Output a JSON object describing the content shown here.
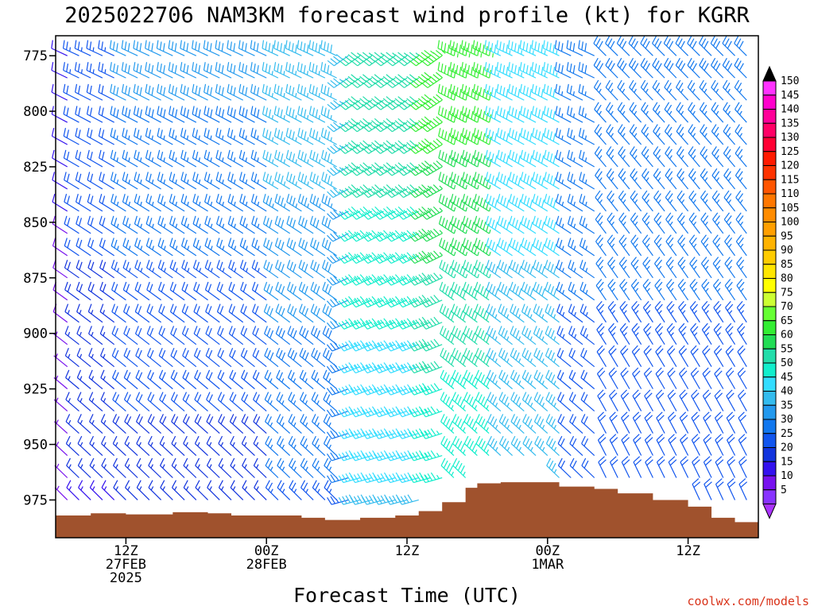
{
  "chart_data": {
    "type": "wind-barb-time-height",
    "title": "2025022706 NAM3KM forecast wind profile (kt) for KGRR",
    "xlabel": "Forecast Time (UTC)",
    "ylabel": "",
    "y_ticks": [
      "775",
      "800",
      "825",
      "850",
      "875",
      "900",
      "925",
      "950",
      "975"
    ],
    "y_tick_values": [
      775,
      800,
      825,
      850,
      875,
      900,
      925,
      950,
      975
    ],
    "ylim": [
      766,
      992
    ],
    "x_ticks": [
      {
        "hour": 6,
        "lines": [
          "12Z",
          "27FEB",
          "2025"
        ]
      },
      {
        "hour": 18,
        "lines": [
          "00Z",
          "28FEB"
        ]
      },
      {
        "hour": 30,
        "lines": [
          "12Z"
        ]
      },
      {
        "hour": 42,
        "lines": [
          "00Z",
          "1MAR"
        ]
      },
      {
        "hour": 54,
        "lines": [
          "12Z"
        ]
      }
    ],
    "xlim": [
      0,
      60
    ],
    "levels_hpa": [
      775,
      785,
      795,
      805,
      815,
      825,
      835,
      845,
      855,
      865,
      875,
      885,
      895,
      905,
      915,
      925,
      935,
      945,
      955,
      965,
      975
    ],
    "times_hr": [
      1,
      2,
      3,
      4,
      5,
      6,
      7,
      8,
      9,
      10,
      11,
      12,
      13,
      14,
      15,
      16,
      17,
      18,
      19,
      20,
      21,
      22,
      23,
      24,
      25,
      26,
      27,
      28,
      29,
      30,
      31,
      32,
      33,
      34,
      35,
      36,
      37,
      38,
      39,
      40,
      41,
      42,
      43,
      44,
      45,
      46,
      47,
      48,
      49,
      50,
      51,
      52,
      53,
      54,
      55,
      56,
      57,
      58,
      59
    ],
    "wind_speed_phases_kt": [
      {
        "until_hr": 1,
        "low_level": 8,
        "upper_level": 12
      },
      {
        "until_hr": 5,
        "low_level": 15,
        "upper_level": 25
      },
      {
        "until_hr": 18,
        "low_level": 18,
        "upper_level": 32
      },
      {
        "until_hr": 25,
        "low_level": 25,
        "upper_level": 40
      },
      {
        "until_hr": 31,
        "low_level": 40,
        "upper_level": 55
      },
      {
        "until_hr": 37,
        "low_level": 45,
        "upper_level": 65
      },
      {
        "until_hr": 43,
        "low_level": 35,
        "upper_level": 45
      },
      {
        "until_hr": 59,
        "low_level": 22,
        "upper_level": 30
      }
    ],
    "wind_direction_phases": [
      {
        "until_hr": 24,
        "direction": "west-northwest"
      },
      {
        "until_hr": 33,
        "direction": "southwest"
      },
      {
        "until_hr": 46,
        "direction": "west-northwest"
      },
      {
        "until_hr": 59,
        "direction": "northwest"
      }
    ],
    "terrain_surface_pressure_hpa": [
      {
        "hour": 0,
        "p": 982
      },
      {
        "hour": 3,
        "p": 981
      },
      {
        "hour": 6,
        "p": 981.5
      },
      {
        "hour": 10,
        "p": 980.5
      },
      {
        "hour": 13,
        "p": 981
      },
      {
        "hour": 15,
        "p": 982
      },
      {
        "hour": 18,
        "p": 982
      },
      {
        "hour": 21,
        "p": 983
      },
      {
        "hour": 23,
        "p": 984
      },
      {
        "hour": 26,
        "p": 983
      },
      {
        "hour": 29,
        "p": 982
      },
      {
        "hour": 31,
        "p": 980
      },
      {
        "hour": 33,
        "p": 976
      },
      {
        "hour": 35,
        "p": 969.5
      },
      {
        "hour": 36,
        "p": 967.5
      },
      {
        "hour": 38,
        "p": 967
      },
      {
        "hour": 41,
        "p": 967
      },
      {
        "hour": 43,
        "p": 969
      },
      {
        "hour": 46,
        "p": 970
      },
      {
        "hour": 48,
        "p": 972
      },
      {
        "hour": 51,
        "p": 975
      },
      {
        "hour": 54,
        "p": 978
      },
      {
        "hour": 56,
        "p": 983
      },
      {
        "hour": 58,
        "p": 985
      },
      {
        "hour": 60,
        "p": 986
      }
    ],
    "terrain_color": "#a0522d",
    "colorbar": {
      "labels": [
        "150",
        "145",
        "140",
        "135",
        "130",
        "125",
        "120",
        "115",
        "110",
        "105",
        "100",
        "95",
        "90",
        "85",
        "80",
        "75",
        "70",
        "65",
        "60",
        "55",
        "50",
        "45",
        "40",
        "35",
        "30",
        "25",
        "20",
        "15",
        "10",
        "5"
      ],
      "colors": [
        "#ff33ff",
        "#ff00cc",
        "#ff0099",
        "#ff0066",
        "#ff0033",
        "#ff1a00",
        "#ff3300",
        "#ff5500",
        "#ff7700",
        "#ff8c00",
        "#ff9f00",
        "#ffb300",
        "#ffcc00",
        "#ffe600",
        "#ffff00",
        "#ccff33",
        "#66ff33",
        "#33ee33",
        "#22dd55",
        "#22ddaa",
        "#11eecc",
        "#33ddff",
        "#33bbee",
        "#2299ee",
        "#1177ee",
        "#1155ee",
        "#1133dd",
        "#3311ee",
        "#7711ee",
        "#8833ff"
      ],
      "top_arrow_color": "#000000",
      "bottom_arrow_color": "#aa33ff"
    }
  },
  "footer": {
    "credit": "coolwx.com/models"
  }
}
